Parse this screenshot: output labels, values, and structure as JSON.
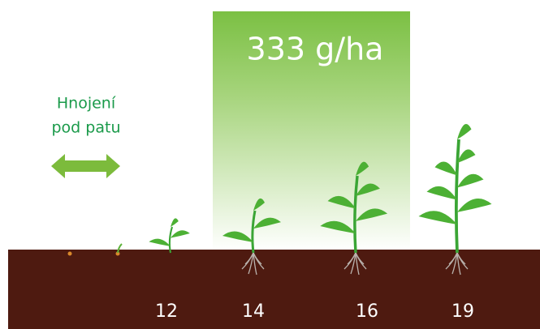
{
  "label": {
    "lines": [
      "Hnojení",
      "pod patu"
    ]
  },
  "dose": "333 g/ha",
  "stages": [
    "12",
    "14",
    "16",
    "19"
  ]
}
